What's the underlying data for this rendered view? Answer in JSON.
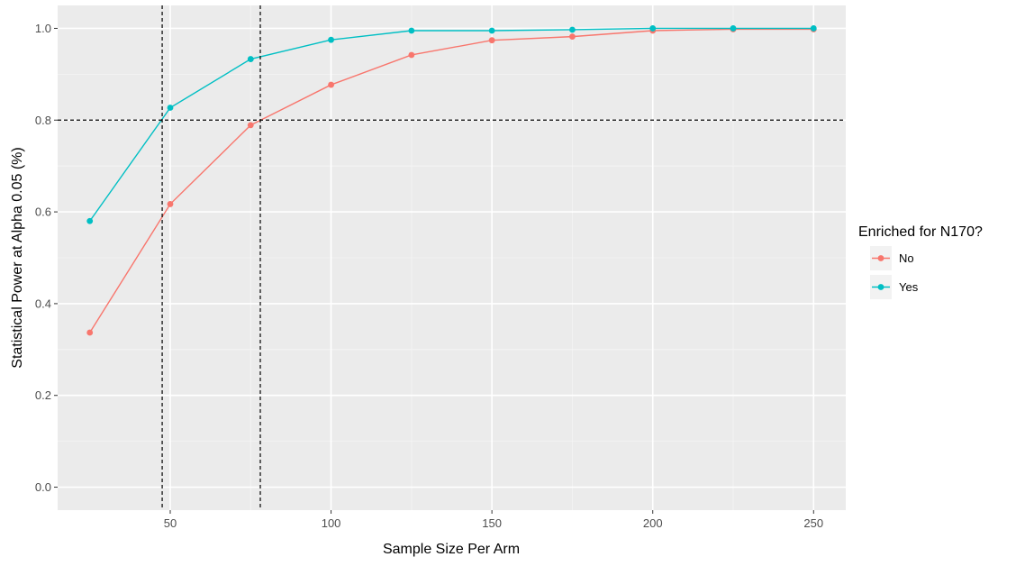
{
  "chart_data": {
    "type": "line",
    "xlabel": "Sample Size Per Arm",
    "ylabel": "Statistical Power at Alpha 0.05 (%)",
    "x": [
      25,
      50,
      75,
      100,
      125,
      150,
      175,
      200,
      225,
      250
    ],
    "x_ticks": [
      "50",
      "100",
      "150",
      "200",
      "250"
    ],
    "y_ticks": [
      "0.0",
      "0.2",
      "0.4",
      "0.6",
      "0.8",
      "1.0"
    ],
    "xlim": [
      15,
      260
    ],
    "ylim": [
      -0.05,
      1.05
    ],
    "grid": true,
    "legend": {
      "title": "Enriched for N170?",
      "placement": "right"
    },
    "series": [
      {
        "name": "No",
        "color": "#F8766D",
        "values": [
          0.337,
          0.617,
          0.789,
          0.877,
          0.942,
          0.974,
          0.982,
          0.995,
          0.998,
          0.998
        ]
      },
      {
        "name": "Yes",
        "color": "#00BFC4",
        "values": [
          0.58,
          0.827,
          0.933,
          0.975,
          0.995,
          0.995,
          0.997,
          1.0,
          1.0,
          1.0
        ]
      }
    ],
    "reference_lines": {
      "horizontal": [
        0.8
      ],
      "vertical": [
        47.5,
        78
      ]
    }
  }
}
